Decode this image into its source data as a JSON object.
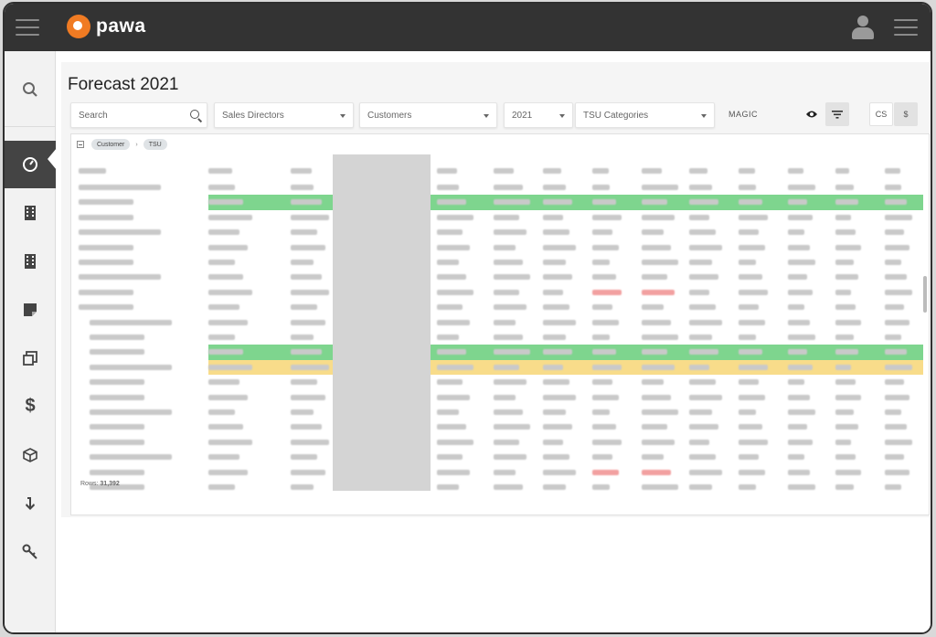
{
  "app": {
    "name": "pawa"
  },
  "page": {
    "title": "Forecast 2021"
  },
  "filters": {
    "search_placeholder": "Search",
    "sales_directors": "Sales Directors",
    "customers": "Customers",
    "year": "2021",
    "tsu_categories": "TSU Categories",
    "magic": "MAGIC",
    "currency_cs": "CS",
    "currency_dollar": "$"
  },
  "grid": {
    "chips": [
      "Customer",
      "TSU"
    ],
    "rows_label": "Rows:",
    "rows_count": "31,392"
  },
  "colors": {
    "topbar": "#333333",
    "accent": "#f07b23",
    "total_row": "#7ed58e",
    "highlight_row": "#f8dc8a"
  },
  "icons": [
    "hamburger-icon",
    "user-icon",
    "search-icon",
    "dashboard-icon",
    "building-icon",
    "note-icon",
    "copy-icon",
    "dollar-icon",
    "cube-icon",
    "download-icon",
    "key-icon",
    "eye-icon",
    "filter-icon"
  ]
}
